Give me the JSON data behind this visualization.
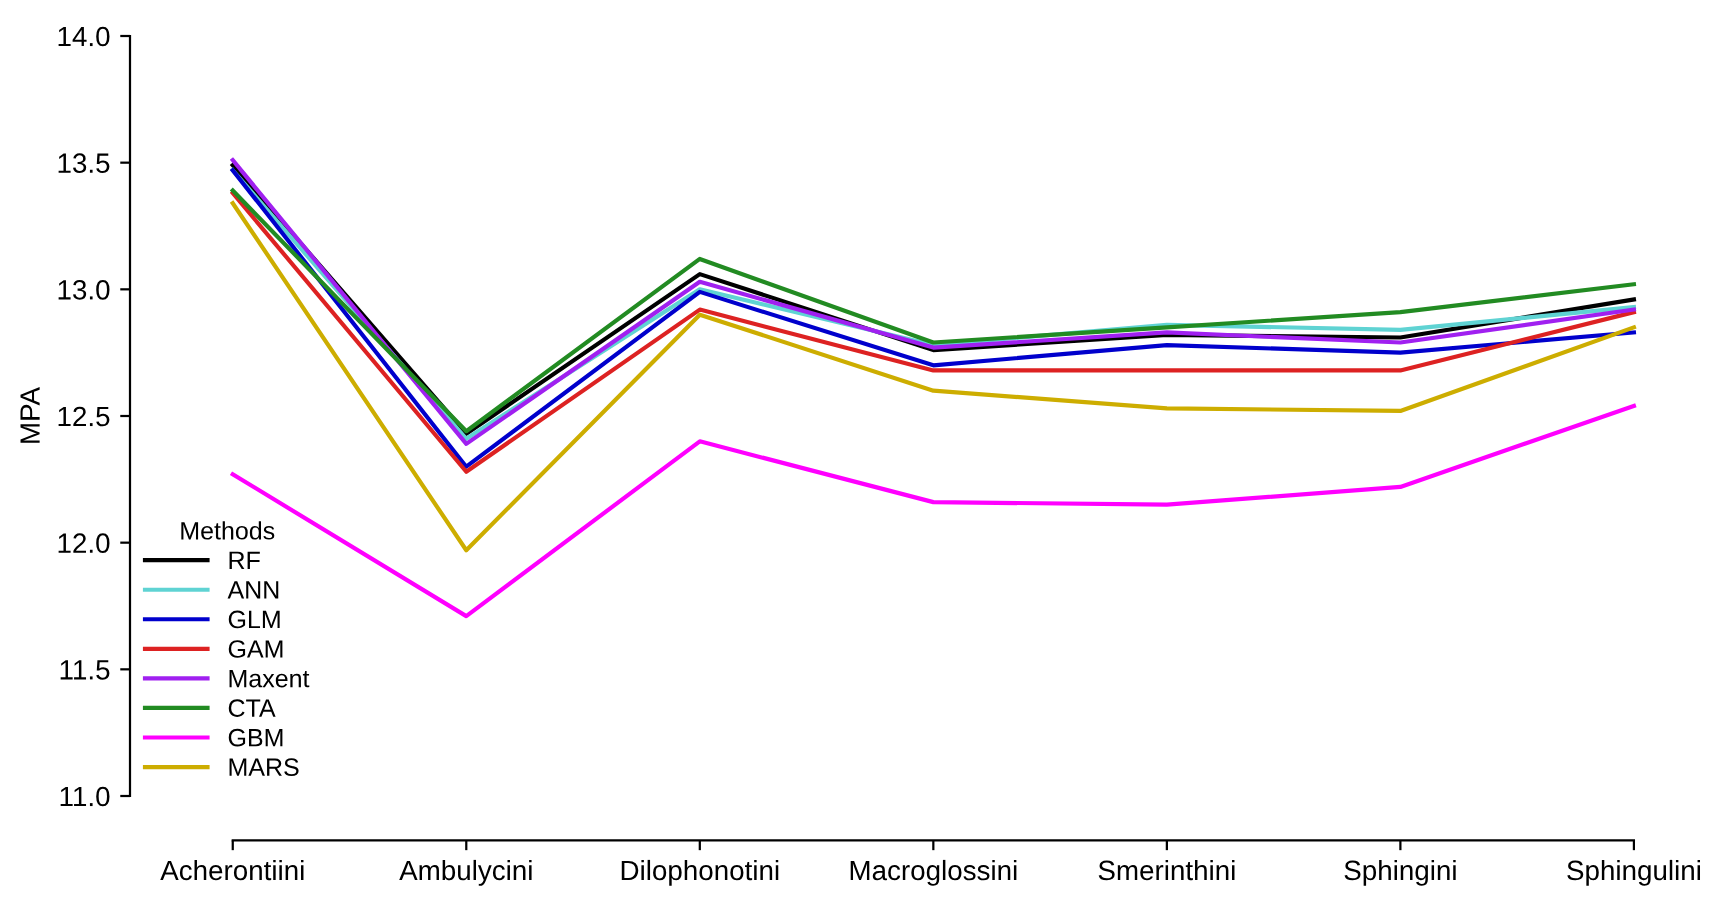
{
  "chart_data": {
    "type": "line",
    "ylabel": "MPA",
    "legend_title": "Methods",
    "legend": "bottom left",
    "grid": false,
    "marker": "none",
    "line_style": "solid",
    "categories": [
      "Acherontiini",
      "Ambulycini",
      "Dilophonotini",
      "Macroglossini",
      "Smerinthini",
      "Sphingini",
      "Sphingulini"
    ],
    "ylim": [
      11.0,
      14.0
    ],
    "yticks": [
      {
        "value": 11,
        "label": "11.0"
      },
      {
        "value": 11.5,
        "label": "11.5"
      },
      {
        "value": 12,
        "label": "12.0"
      },
      {
        "value": 12.5,
        "label": "12.5"
      },
      {
        "value": 13,
        "label": "13.0"
      },
      {
        "value": 13.5,
        "label": "13.5"
      },
      {
        "value": 14,
        "label": "14.0"
      }
    ],
    "series": [
      {
        "name": "RF",
        "color": "#000000",
        "values": [
          13.49,
          12.43,
          13.06,
          12.76,
          12.82,
          12.81,
          12.96
        ]
      },
      {
        "name": "ANN",
        "color": "#5fd3d3",
        "values": [
          13.47,
          12.41,
          13.0,
          12.78,
          12.86,
          12.84,
          12.93
        ]
      },
      {
        "name": "GLM",
        "color": "#0000cc",
        "values": [
          13.47,
          12.3,
          12.99,
          12.7,
          12.78,
          12.75,
          12.83
        ]
      },
      {
        "name": "GAM",
        "color": "#dd2222",
        "values": [
          13.38,
          12.28,
          12.92,
          12.68,
          12.68,
          12.68,
          12.91
        ]
      },
      {
        "name": "Maxent",
        "color": "#a020f0",
        "values": [
          13.51,
          12.39,
          13.03,
          12.77,
          12.83,
          12.79,
          12.92
        ]
      },
      {
        "name": "CTA",
        "color": "#228b22",
        "values": [
          13.39,
          12.44,
          13.12,
          12.79,
          12.85,
          12.91,
          13.02
        ]
      },
      {
        "name": "GBM",
        "color": "#ff00ff",
        "values": [
          12.27,
          11.71,
          12.4,
          12.16,
          12.15,
          12.22,
          12.54
        ]
      },
      {
        "name": "MARS",
        "color": "#cdad00",
        "values": [
          13.34,
          11.97,
          12.9,
          12.6,
          12.53,
          12.52,
          12.85
        ]
      }
    ]
  }
}
